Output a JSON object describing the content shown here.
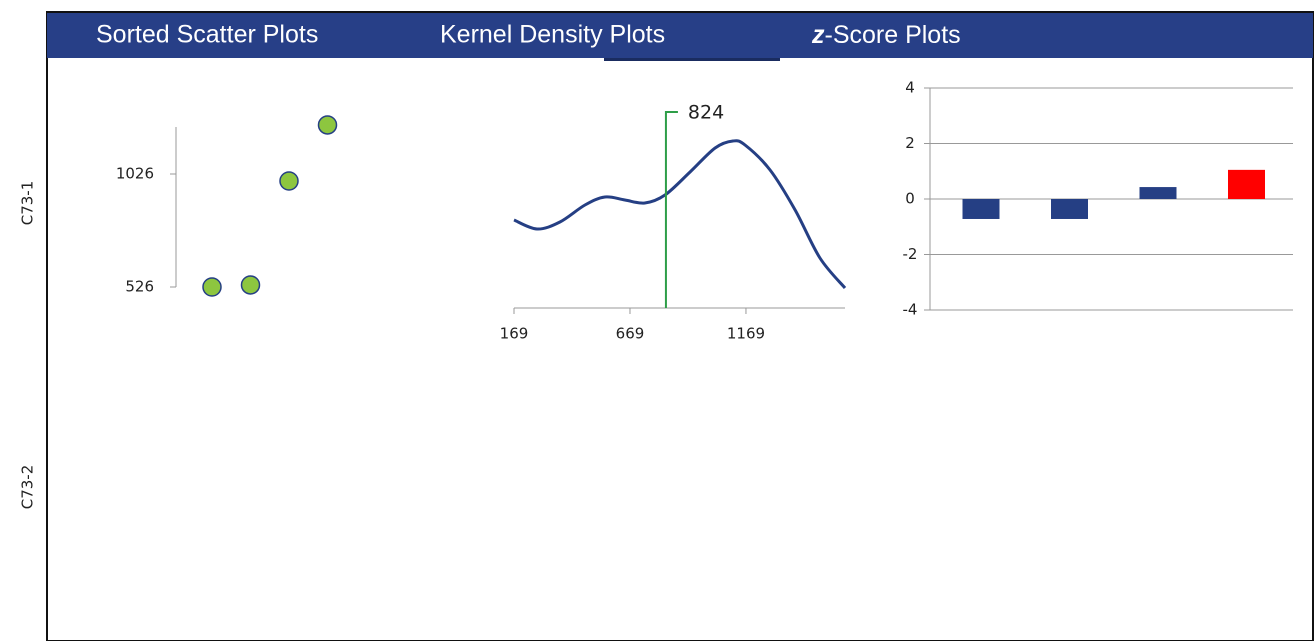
{
  "headers": [
    "Sorted Scatter Plots",
    "Kernel Density Plots",
    {
      "italic": "z",
      "text": "-Score Plots"
    }
  ],
  "rows": [
    "C73-1",
    "C73-2"
  ],
  "chart_data": [
    {
      "type": "scatter",
      "categories": [
        null,
        null,
        null,
        null
      ],
      "values": [
        526,
        535,
        995,
        1243
      ],
      "color": "#8dc63f",
      "ylim": [
        526,
        1234
      ],
      "yticks": [
        526,
        1026
      ]
    },
    {
      "type": "line",
      "x": [
        169,
        268,
        367,
        475,
        561,
        647,
        733,
        820,
        928,
        1036,
        1113,
        1165,
        1273,
        1381,
        1488,
        1596
      ],
      "values": [
        88,
        79,
        86,
        103,
        111,
        108,
        105,
        113,
        136,
        160,
        167,
        163,
        138,
        98,
        50,
        20
      ],
      "color": "#253f84",
      "xlim": [
        169,
        1596
      ],
      "xticks": [
        169,
        669,
        1169
      ],
      "ylim": [
        0,
        200
      ],
      "marker": 824,
      "marker_color": "#2e9e48"
    },
    {
      "type": "bar",
      "categories": [
        null,
        null,
        null,
        null
      ],
      "values": [
        -0.72,
        -0.72,
        0.43,
        1.05
      ],
      "colors": [
        "#253f84",
        "#253f84",
        "#253f84",
        "#ff0000"
      ],
      "ylim": [
        -4,
        4
      ],
      "yticks": [
        4,
        2,
        0,
        -2,
        -4
      ],
      "grid": true
    }
  ]
}
